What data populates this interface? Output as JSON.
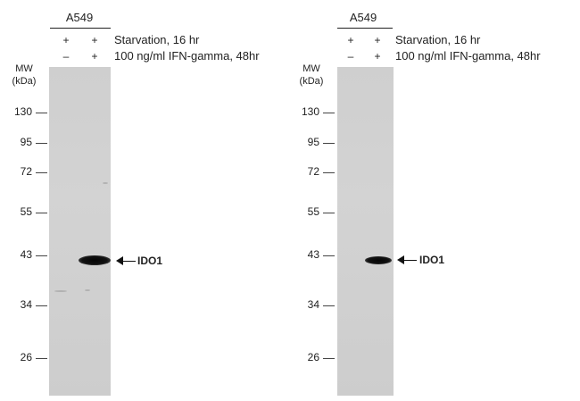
{
  "blot": {
    "cell_line": "A549",
    "conditions": [
      "Starvation, 16 hr",
      "100 ng/ml IFN-gamma, 48hr"
    ],
    "lane_signs": {
      "row1": [
        "+",
        "+"
      ],
      "row2": [
        "–",
        "+"
      ]
    },
    "mw_title_line1": "MW",
    "mw_title_line2": "(kDa)",
    "markers": [
      "130",
      "95",
      "72",
      "55",
      "43",
      "34",
      "26"
    ],
    "target": "IDO1"
  },
  "panels": [
    {
      "id": "left"
    },
    {
      "id": "right"
    }
  ]
}
